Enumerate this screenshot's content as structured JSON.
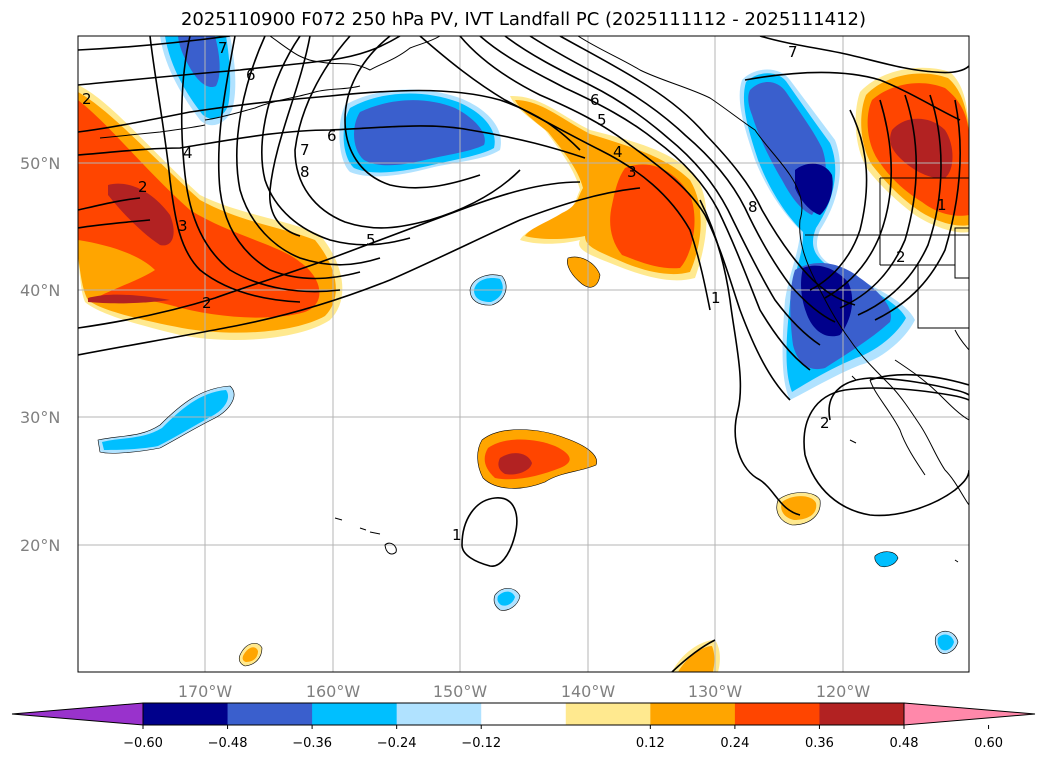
{
  "title": "2025110900 F072 250 hPa PV, IVT Landfall PC (2025111112 - 2025111412)",
  "map": {
    "lat_labels": [
      "50°N",
      "40°N",
      "30°N",
      "20°N"
    ],
    "lon_labels": [
      "170°W",
      "160°W",
      "150°W",
      "140°W",
      "130°W",
      "120°W"
    ],
    "contour_labels": [
      "7",
      "6",
      "6",
      "7",
      "8",
      "4",
      "3",
      "2",
      "2",
      "5",
      "6",
      "5",
      "4",
      "3",
      "1",
      "7",
      "8",
      "2",
      "1",
      "2",
      "1",
      "2"
    ]
  },
  "colorbar": {
    "ticks": [
      "−0.60",
      "−0.48",
      "−0.36",
      "−0.24",
      "−0.12",
      "0.12",
      "0.24",
      "0.36",
      "0.48",
      "0.60"
    ],
    "colors": [
      "#9932cc",
      "#00008b",
      "#3a5fcd",
      "#00bfff",
      "#b0e2ff",
      "#ffffff",
      "#ffe98f",
      "#ffa500",
      "#ff4500",
      "#b22222",
      "#ff88aa"
    ]
  }
}
